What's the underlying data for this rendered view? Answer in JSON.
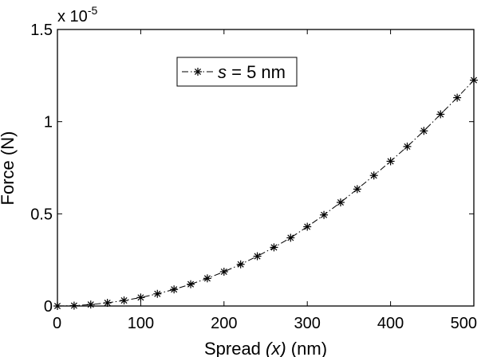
{
  "chart_data": {
    "type": "line",
    "xlabel_parts": [
      "Spread ",
      "(x)",
      " (nm)"
    ],
    "ylabel": "Force (N)",
    "exponent_base": "x 10",
    "exponent_power": "-5",
    "xlim": [
      0,
      500
    ],
    "ylim": [
      0,
      1.5
    ],
    "xticks": [
      0,
      100,
      200,
      300,
      400,
      500
    ],
    "xtick_labels": [
      "0",
      "100",
      "200",
      "300",
      "400",
      "500"
    ],
    "yticks": [
      0,
      0.5,
      1,
      1.5
    ],
    "ytick_labels": [
      "0",
      "0.5",
      "1",
      "1.5"
    ],
    "grid": false,
    "legend_position": "top-left",
    "legend": {
      "var": "s",
      "eq": " = 5 nm"
    },
    "series": [
      {
        "name": "s = 5 nm",
        "marker": "asterisk",
        "line_style": "dash-dot",
        "color": "#000000",
        "x": [
          0,
          20,
          40,
          60,
          80,
          100,
          120,
          140,
          160,
          180,
          200,
          220,
          240,
          260,
          280,
          300,
          320,
          340,
          360,
          380,
          400,
          420,
          440,
          460,
          480,
          500
        ],
        "y": [
          0,
          0.002,
          0.008,
          0.017,
          0.03,
          0.046,
          0.066,
          0.09,
          0.118,
          0.15,
          0.186,
          0.226,
          0.27,
          0.318,
          0.37,
          0.43,
          0.494,
          0.562,
          0.634,
          0.708,
          0.785,
          0.865,
          0.95,
          1.04,
          1.13,
          1.225
        ]
      }
    ]
  }
}
